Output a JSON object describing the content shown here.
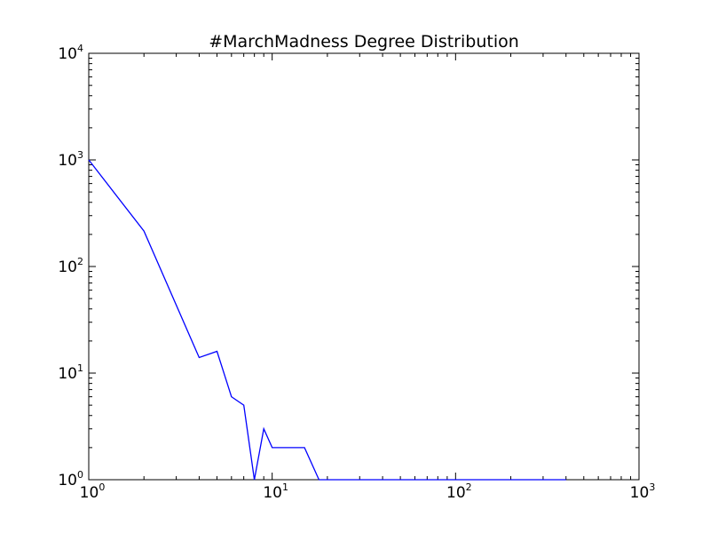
{
  "chart_data": {
    "type": "line",
    "title": "#MarchMadness Degree Distribution",
    "xlabel": "",
    "ylabel": "",
    "xscale": "log",
    "yscale": "log",
    "xlim": [
      1,
      1000
    ],
    "ylim": [
      1,
      10000
    ],
    "grid": false,
    "x_ticks": [
      {
        "base": "10",
        "exp": "0",
        "value": 1
      },
      {
        "base": "10",
        "exp": "1",
        "value": 10
      },
      {
        "base": "10",
        "exp": "2",
        "value": 100
      },
      {
        "base": "10",
        "exp": "3",
        "value": 1000
      }
    ],
    "y_ticks": [
      {
        "base": "10",
        "exp": "0",
        "value": 1
      },
      {
        "base": "10",
        "exp": "1",
        "value": 10
      },
      {
        "base": "10",
        "exp": "2",
        "value": 100
      },
      {
        "base": "10",
        "exp": "3",
        "value": 1000
      },
      {
        "base": "10",
        "exp": "4",
        "value": 10000
      }
    ],
    "series": [
      {
        "color": "#0000ff",
        "x": [
          1,
          2,
          4,
          5,
          6,
          7,
          8,
          9,
          10,
          15,
          18,
          400
        ],
        "y": [
          1000,
          215,
          14,
          16,
          6,
          5,
          1,
          3,
          2,
          2,
          1,
          1
        ]
      }
    ]
  }
}
